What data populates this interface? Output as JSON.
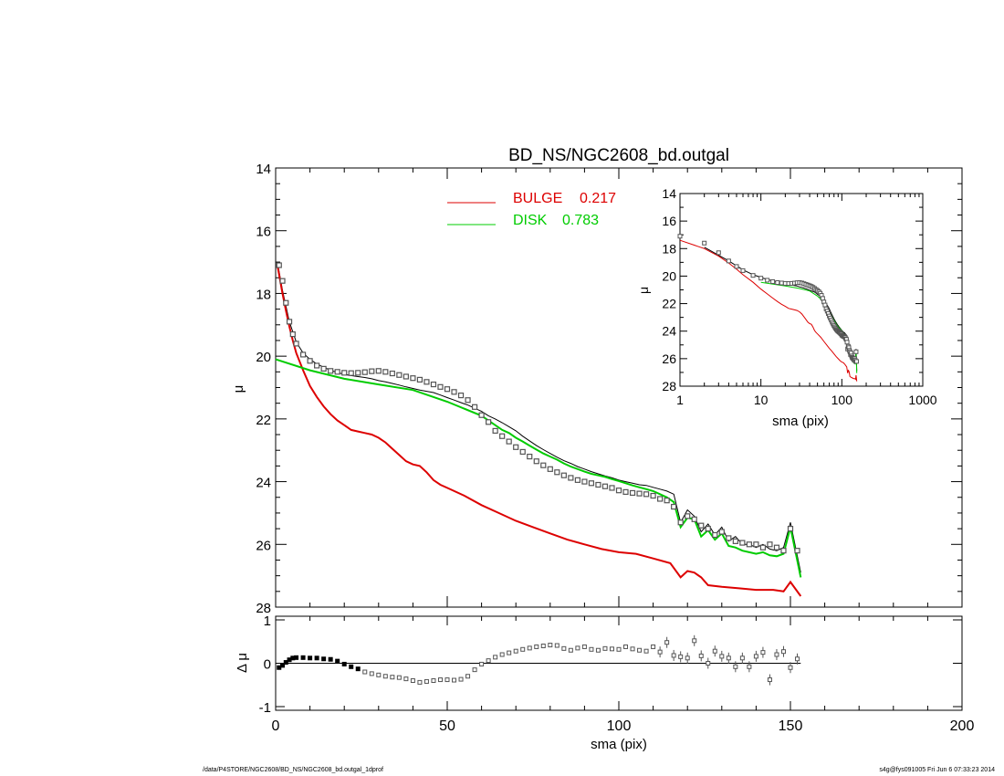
{
  "title": "BD_NS/NGC2608_bd.outgal",
  "footer": {
    "left": "/data/P4STORE/NGC2608/BD_NS/NGC2608_bd.outgal_1dprof",
    "right": "s4g@fys091005  Fri Jun  6 07:33:23 2014"
  },
  "colors": {
    "data": "#555555",
    "model": "#000000",
    "bulge": "#dd0000",
    "disk": "#00cc00"
  },
  "chart_data": [
    {
      "id": "main",
      "type": "line",
      "xlabel": "",
      "ylabel": "μ",
      "xlim": [
        0,
        200
      ],
      "ylim": [
        28,
        14
      ],
      "y_inverted": true,
      "yticks": [
        14,
        16,
        18,
        20,
        22,
        24,
        26,
        28
      ],
      "legend": [
        {
          "label": "BULGE",
          "value": "0.217",
          "color": "#dd0000"
        },
        {
          "label": "DISK",
          "value": "0.783",
          "color": "#00cc00"
        }
      ],
      "series": [
        {
          "name": "data",
          "style": "squares",
          "x": [
            1,
            2,
            3,
            4,
            5,
            6,
            8,
            10,
            12,
            14,
            16,
            18,
            20,
            22,
            24,
            26,
            28,
            30,
            32,
            34,
            36,
            38,
            40,
            42,
            44,
            46,
            48,
            50,
            52,
            54,
            56,
            58,
            60,
            62,
            64,
            66,
            68,
            70,
            72,
            74,
            76,
            78,
            80,
            82,
            84,
            86,
            88,
            90,
            92,
            94,
            96,
            98,
            100,
            102,
            104,
            106,
            108,
            110,
            112,
            114,
            116,
            118,
            120,
            122,
            124,
            126,
            128,
            130,
            132,
            134,
            136,
            138,
            140,
            142,
            144,
            146,
            148,
            150,
            152
          ],
          "y": [
            17.1,
            17.6,
            18.3,
            18.9,
            19.3,
            19.6,
            19.95,
            20.15,
            20.3,
            20.4,
            20.47,
            20.5,
            20.53,
            20.54,
            20.53,
            20.51,
            20.48,
            20.47,
            20.5,
            20.55,
            20.6,
            20.65,
            20.7,
            20.75,
            20.82,
            20.9,
            20.98,
            21.05,
            21.14,
            21.25,
            21.4,
            21.62,
            21.88,
            22.1,
            22.38,
            22.55,
            22.72,
            22.9,
            23.05,
            23.2,
            23.35,
            23.48,
            23.6,
            23.7,
            23.8,
            23.88,
            23.95,
            24.0,
            24.05,
            24.1,
            24.15,
            24.2,
            24.28,
            24.33,
            24.36,
            24.38,
            24.4,
            24.45,
            24.55,
            24.6,
            24.8,
            25.3,
            25.1,
            25.2,
            25.4,
            25.5,
            25.7,
            25.6,
            25.8,
            25.9,
            25.95,
            26.0,
            26.0,
            26.1,
            26.0,
            26.1,
            26.2,
            25.5,
            26.2
          ]
        },
        {
          "name": "model",
          "style": "line",
          "x": [
            0.5,
            2,
            4,
            6,
            8,
            10,
            12,
            14,
            16,
            18,
            20,
            22,
            24,
            26,
            28,
            30,
            32,
            34,
            36,
            38,
            40,
            42,
            44,
            46,
            48,
            50,
            52,
            54,
            56,
            58,
            60,
            62,
            64,
            66,
            68,
            70,
            72,
            74,
            76,
            78,
            80,
            82,
            84,
            86,
            88,
            90,
            92,
            94,
            96,
            98,
            100,
            102,
            104,
            106,
            108,
            110,
            112,
            114,
            116,
            118,
            120,
            122,
            124,
            126,
            128,
            130,
            132,
            134,
            136,
            138,
            140,
            142,
            144,
            146,
            148,
            150,
            153
          ],
          "y": [
            17.0,
            17.9,
            18.9,
            19.55,
            19.9,
            20.1,
            20.25,
            20.35,
            20.45,
            20.52,
            20.58,
            20.62,
            20.65,
            20.68,
            20.72,
            20.78,
            20.82,
            20.87,
            20.92,
            20.98,
            21.03,
            21.08,
            21.12,
            21.16,
            21.24,
            21.32,
            21.4,
            21.48,
            21.56,
            21.66,
            21.76,
            21.9,
            22.0,
            22.12,
            22.25,
            22.38,
            22.55,
            22.7,
            22.85,
            22.98,
            23.1,
            23.22,
            23.33,
            23.42,
            23.52,
            23.6,
            23.68,
            23.75,
            23.82,
            23.88,
            23.95,
            24.0,
            24.05,
            24.1,
            24.12,
            24.18,
            24.24,
            24.3,
            24.4,
            25.3,
            24.9,
            25.1,
            25.6,
            25.35,
            25.7,
            25.45,
            25.9,
            25.75,
            26.0,
            26.0,
            26.1,
            26.0,
            26.15,
            26.2,
            26.1,
            25.3,
            26.9
          ]
        },
        {
          "name": "BULGE",
          "style": "line",
          "x": [
            0.5,
            1,
            2,
            3,
            4,
            5,
            6,
            8,
            10,
            12,
            14,
            16,
            18,
            20,
            22,
            24,
            26,
            28,
            30,
            32,
            34,
            36,
            38,
            40,
            42,
            44,
            46,
            48,
            50,
            55,
            60,
            65,
            70,
            75,
            80,
            85,
            90,
            95,
            100,
            105,
            110,
            115,
            118,
            120,
            122,
            124,
            126,
            130,
            135,
            140,
            145,
            148,
            150,
            153
          ],
          "y": [
            17.1,
            17.4,
            18.0,
            18.55,
            19.05,
            19.5,
            19.9,
            20.45,
            20.95,
            21.3,
            21.6,
            21.85,
            22.05,
            22.2,
            22.35,
            22.4,
            22.45,
            22.5,
            22.6,
            22.75,
            22.95,
            23.15,
            23.35,
            23.45,
            23.5,
            23.7,
            23.95,
            24.1,
            24.2,
            24.45,
            24.75,
            25.0,
            25.25,
            25.45,
            25.65,
            25.85,
            26.0,
            26.15,
            26.25,
            26.3,
            26.45,
            26.6,
            27.05,
            26.85,
            26.9,
            27.05,
            27.3,
            27.35,
            27.4,
            27.45,
            27.45,
            27.5,
            27.2,
            27.65
          ]
        },
        {
          "name": "DISK",
          "style": "line",
          "x": [
            0,
            10,
            20,
            30,
            40,
            50,
            60,
            62,
            64,
            66,
            68,
            70,
            72,
            74,
            76,
            78,
            80,
            82,
            84,
            86,
            88,
            90,
            92,
            94,
            96,
            98,
            100,
            102,
            104,
            106,
            108,
            110,
            112,
            114,
            116,
            118,
            120,
            122,
            124,
            126,
            128,
            130,
            132,
            134,
            136,
            138,
            140,
            142,
            144,
            146,
            148,
            150,
            153
          ],
          "y": [
            20.1,
            20.45,
            20.72,
            20.9,
            21.08,
            21.45,
            21.9,
            22.05,
            22.2,
            22.35,
            22.45,
            22.6,
            22.72,
            22.85,
            22.98,
            23.1,
            23.2,
            23.3,
            23.42,
            23.52,
            23.6,
            23.68,
            23.75,
            23.8,
            23.85,
            23.92,
            23.98,
            24.05,
            24.12,
            24.18,
            24.24,
            24.3,
            24.4,
            24.5,
            24.65,
            25.45,
            25.15,
            25.2,
            25.75,
            25.55,
            25.85,
            25.65,
            26.05,
            26.1,
            26.2,
            26.25,
            26.3,
            26.25,
            26.35,
            26.38,
            26.3,
            25.45,
            27.05
          ]
        }
      ]
    },
    {
      "id": "inset",
      "type": "line",
      "xscale": "log",
      "xlabel": "sma (pix)",
      "ylabel": "μ",
      "xlim": [
        1,
        1000
      ],
      "ylim": [
        28,
        14
      ],
      "xticks": [
        "1",
        "10",
        "100",
        "1000"
      ],
      "yticks": [
        14,
        16,
        18,
        20,
        22,
        24,
        26,
        28
      ]
    },
    {
      "id": "residual",
      "type": "scatter",
      "xlabel": "sma (pix)",
      "ylabel": "Δ μ",
      "xlim": [
        0,
        200
      ],
      "ylim": [
        -1,
        1
      ],
      "xticks": [
        0,
        50,
        100,
        150,
        200
      ],
      "yticks": [
        -1,
        0,
        1
      ],
      "series": [
        {
          "name": "residual",
          "x": [
            1,
            2,
            3,
            4,
            5,
            6,
            8,
            10,
            12,
            14,
            16,
            18,
            20,
            22,
            24,
            26,
            28,
            30,
            32,
            34,
            36,
            38,
            40,
            42,
            44,
            46,
            48,
            50,
            52,
            54,
            56,
            58,
            60,
            62,
            64,
            66,
            68,
            70,
            72,
            74,
            76,
            78,
            80,
            82,
            84,
            86,
            88,
            90,
            92,
            94,
            96,
            98,
            100,
            102,
            104,
            106,
            108,
            110,
            112,
            114,
            116,
            118,
            120,
            122,
            124,
            126,
            128,
            130,
            132,
            134,
            136,
            138,
            140,
            142,
            144,
            146,
            148,
            150,
            152
          ],
          "y": [
            -0.1,
            -0.05,
            0.02,
            0.08,
            0.12,
            0.13,
            0.13,
            0.12,
            0.12,
            0.1,
            0.09,
            0.05,
            -0.02,
            -0.08,
            -0.13,
            -0.2,
            -0.24,
            -0.27,
            -0.3,
            -0.32,
            -0.33,
            -0.36,
            -0.4,
            -0.44,
            -0.42,
            -0.4,
            -0.38,
            -0.38,
            -0.39,
            -0.37,
            -0.3,
            -0.15,
            -0.02,
            0.06,
            0.14,
            0.2,
            0.24,
            0.28,
            0.32,
            0.35,
            0.38,
            0.4,
            0.42,
            0.41,
            0.34,
            0.3,
            0.35,
            0.38,
            0.32,
            0.3,
            0.34,
            0.33,
            0.32,
            0.38,
            0.33,
            0.3,
            0.28,
            0.38,
            0.26,
            0.48,
            0.18,
            0.15,
            0.12,
            0.52,
            0.17,
            0.0,
            0.28,
            0.16,
            0.12,
            -0.08,
            0.12,
            -0.08,
            0.16,
            0.25,
            -0.38,
            0.2,
            0.27,
            -0.1,
            0.1
          ]
        }
      ]
    }
  ]
}
